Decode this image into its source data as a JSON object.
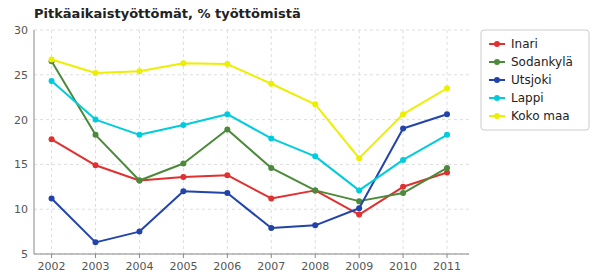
{
  "chart_data": {
    "type": "line",
    "title": "Pitkäaikaistyöttömät, % työttömistä",
    "x": [
      2002,
      2003,
      2004,
      2005,
      2006,
      2007,
      2008,
      2009,
      2010,
      2011
    ],
    "series": [
      {
        "name": "Inari",
        "color": "#e03030",
        "values": [
          17.8,
          14.9,
          13.2,
          13.6,
          13.8,
          11.2,
          12.1,
          9.4,
          12.5,
          14.1
        ]
      },
      {
        "name": "Sodankylä",
        "color": "#4a8a3a",
        "values": [
          26.5,
          18.3,
          13.2,
          15.1,
          18.9,
          14.6,
          12.1,
          10.9,
          11.8,
          14.6
        ]
      },
      {
        "name": "Utsjoki",
        "color": "#2244aa",
        "values": [
          11.2,
          6.3,
          7.5,
          12.0,
          11.8,
          7.9,
          8.2,
          10.1,
          19.0,
          20.6
        ]
      },
      {
        "name": "Lappi",
        "color": "#00ccdd",
        "values": [
          24.3,
          20.0,
          18.3,
          19.4,
          20.6,
          17.9,
          15.9,
          12.1,
          15.5,
          18.3
        ]
      },
      {
        "name": "Koko maa",
        "color": "#eeee00",
        "values": [
          26.7,
          25.2,
          25.4,
          26.3,
          26.2,
          24.0,
          21.7,
          15.7,
          20.6,
          23.5
        ]
      }
    ],
    "xlim": [
      2001.6,
      2011.5
    ],
    "xticks": [
      2002,
      2003,
      2004,
      2005,
      2006,
      2007,
      2008,
      2009,
      2010,
      2011
    ],
    "ylim": [
      5,
      30
    ],
    "yticks": [
      5,
      10,
      15,
      20,
      25,
      30
    ],
    "grid": true,
    "legend": "right"
  }
}
